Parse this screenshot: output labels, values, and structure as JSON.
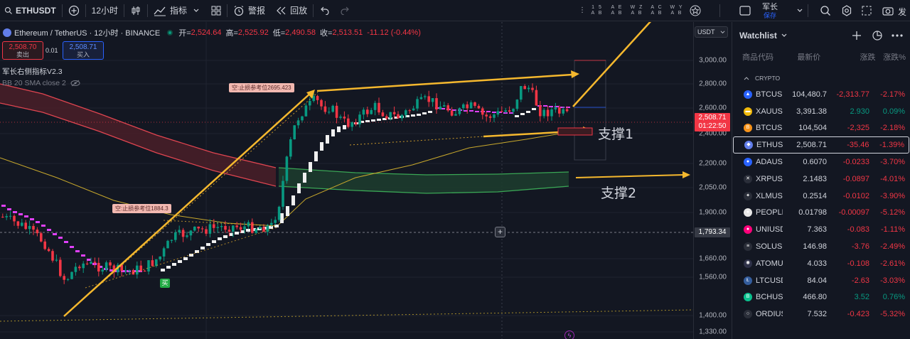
{
  "toolbar": {
    "symbol": "ETHUSDT",
    "interval": "12小时",
    "indicators_label": "指标",
    "alert_label": "警报",
    "replay_label": "回放",
    "waves": [
      {
        "top": "1 5",
        "bottom": "A B"
      },
      {
        "top": "A E",
        "bottom": "A B"
      },
      {
        "top": "W Z",
        "bottom": "A B"
      },
      {
        "top": "A C",
        "bottom": "A B"
      },
      {
        "top": "W Y",
        "bottom": "A B"
      }
    ],
    "user_name": "军长",
    "user_sub": "保存",
    "far_right_label": "发"
  },
  "legend": {
    "title": "Ethereum / TetherUS · 12小时 · BINANCE",
    "open_label": "开=",
    "open": "2,524.64",
    "high_label": "高=",
    "high": "2,525.92",
    "low_label": "低=",
    "low": "2,490.58",
    "close_label": "收=",
    "close": "2,513.51",
    "change": "-11.12 (-0.44%)"
  },
  "trade": {
    "sell_price": "2,508.70",
    "sell_label": "卖出",
    "spread": "0.01",
    "buy_price": "2,508.71",
    "buy_label": "买入"
  },
  "indicators": {
    "name1": "军长右侧指标V2.3",
    "name2": "BB 20 SMA close 2"
  },
  "price_axis": {
    "currency": "USDT",
    "ticks": [
      "3,000.00",
      "2,800.00",
      "2,600.00",
      "2,400.00",
      "2,200.00",
      "2,050.00",
      "1,900.00",
      "1,660.00",
      "1,560.00",
      "1,400.00",
      "1,330.00"
    ],
    "current_price": "2,508.71",
    "countdown": "01:22:50",
    "crosshair_price": "1,793.34"
  },
  "annotations": {
    "stop1": "空:止损参考位2695.423",
    "stop2": "空:止损参考位1884.3",
    "buy_marker": "买",
    "support1": "支撑1",
    "support2": "支撑2"
  },
  "watchlist": {
    "title": "Watchlist",
    "columns": [
      "商品代码",
      "最新价",
      "涨跌",
      "涨跌%"
    ],
    "section": "CRYPTO",
    "rows": [
      {
        "symbol": "BTCUSD",
        "last": "104,480.7",
        "chg": "-2,313.77",
        "pct": "-2.17%",
        "dir": "neg",
        "color": "#2962ff",
        "glyph": "▲"
      },
      {
        "symbol": "XAUUSD",
        "last": "3,391.38",
        "chg": "2.930",
        "pct": "0.09%",
        "dir": "pos",
        "color": "#f0b90b",
        "glyph": "▬"
      },
      {
        "symbol": "BTCUSD",
        "last": "104,504",
        "chg": "-2,325",
        "pct": "-2.18%",
        "dir": "neg",
        "color": "#f7931a",
        "glyph": "B"
      },
      {
        "symbol": "ETHUSD",
        "last": "2,508.71",
        "chg": "-35.46",
        "pct": "-1.39%",
        "dir": "neg",
        "color": "#627eea",
        "glyph": "◆"
      },
      {
        "symbol": "ADAUSD",
        "last": "0.6070",
        "chg": "-0.0233",
        "pct": "-3.70%",
        "dir": "neg",
        "color": "#2962ff",
        "glyph": "●"
      },
      {
        "symbol": "XRPUSD",
        "last": "2.1483",
        "chg": "-0.0897",
        "pct": "-4.01%",
        "dir": "neg",
        "color": "#2a2e39",
        "glyph": "✕"
      },
      {
        "symbol": "XLMUSD",
        "last": "0.2514",
        "chg": "-0.0102",
        "pct": "-3.90%",
        "dir": "neg",
        "color": "#2a2e39",
        "glyph": "✦"
      },
      {
        "symbol": "PEOPLE",
        "last": "0.01798",
        "chg": "-0.00097",
        "pct": "-5.12%",
        "dir": "neg",
        "color": "#e8e8e8",
        "glyph": "●"
      },
      {
        "symbol": "UNIUSD",
        "last": "7.363",
        "chg": "-0.083",
        "pct": "-1.11%",
        "dir": "neg",
        "color": "#ff007a",
        "glyph": "●"
      },
      {
        "symbol": "SOLUSD",
        "last": "146.98",
        "chg": "-3.76",
        "pct": "-2.49%",
        "dir": "neg",
        "color": "#2a2e39",
        "glyph": "≡"
      },
      {
        "symbol": "ATOMUS",
        "last": "4.033",
        "chg": "-0.108",
        "pct": "-2.61%",
        "dir": "neg",
        "color": "#2e3148",
        "glyph": "✺"
      },
      {
        "symbol": "LTCUSD",
        "last": "84.04",
        "chg": "-2.63",
        "pct": "-3.03%",
        "dir": "neg",
        "color": "#345d9d",
        "glyph": "Ł"
      },
      {
        "symbol": "BCHUSD",
        "last": "466.80",
        "chg": "3.52",
        "pct": "0.76%",
        "dir": "pos",
        "color": "#0ac18e",
        "glyph": "B"
      },
      {
        "symbol": "ORDIUS",
        "last": "7.532",
        "chg": "-0.423",
        "pct": "-5.32%",
        "dir": "neg",
        "color": "#2a2e39",
        "glyph": "○"
      }
    ]
  },
  "colors": {
    "background": "#131722",
    "up": "#089981",
    "down": "#f23645",
    "annotation": "#f5b82e",
    "bb_upper": "#c2404a",
    "bb_lower": "#27a24a"
  }
}
